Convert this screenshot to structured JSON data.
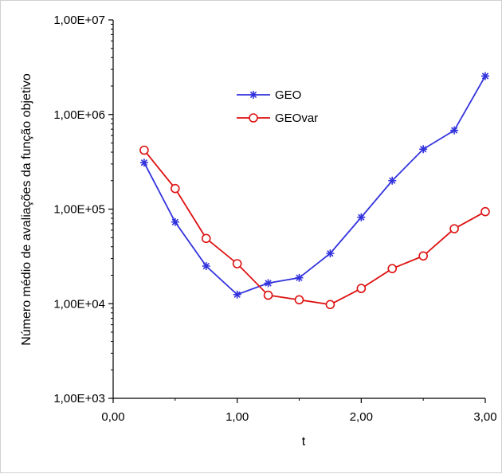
{
  "chart_data": {
    "type": "line",
    "title": "",
    "xlabel": "t",
    "ylabel": "Número médio de avaliações da função objetivo",
    "x_scale": "linear",
    "y_scale": "log",
    "xlim": [
      0,
      3
    ],
    "ylim": [
      1000,
      10000000
    ],
    "x_ticks": [
      {
        "value": 0,
        "label": "0,00"
      },
      {
        "value": 1,
        "label": "1,00"
      },
      {
        "value": 2,
        "label": "2,00"
      },
      {
        "value": 3,
        "label": "3,00"
      }
    ],
    "y_ticks": [
      {
        "value": 1000,
        "label": "1,00E+03"
      },
      {
        "value": 10000,
        "label": "1,00E+04"
      },
      {
        "value": 100000,
        "label": "1,00E+05"
      },
      {
        "value": 1000000,
        "label": "1,00E+06"
      },
      {
        "value": 10000000,
        "label": "1,00E+07"
      }
    ],
    "grid": false,
    "legend_position": "top-center",
    "x": [
      0.25,
      0.5,
      0.75,
      1.0,
      1.25,
      1.5,
      1.75,
      2.0,
      2.25,
      2.5,
      2.75,
      3.0
    ],
    "series": [
      {
        "name": "GEO",
        "color": "#3333dd",
        "marker": "asterisk",
        "values": [
          310000,
          73000,
          25000,
          12500,
          16500,
          18800,
          34000,
          82000,
          200000,
          430000,
          680000,
          2550000
        ]
      },
      {
        "name": "GEOvar",
        "color": "#dd1111",
        "marker": "circle",
        "values": [
          420000,
          165000,
          49000,
          26500,
          12300,
          11000,
          9800,
          14500,
          23500,
          32000,
          62000,
          94000
        ]
      }
    ]
  }
}
